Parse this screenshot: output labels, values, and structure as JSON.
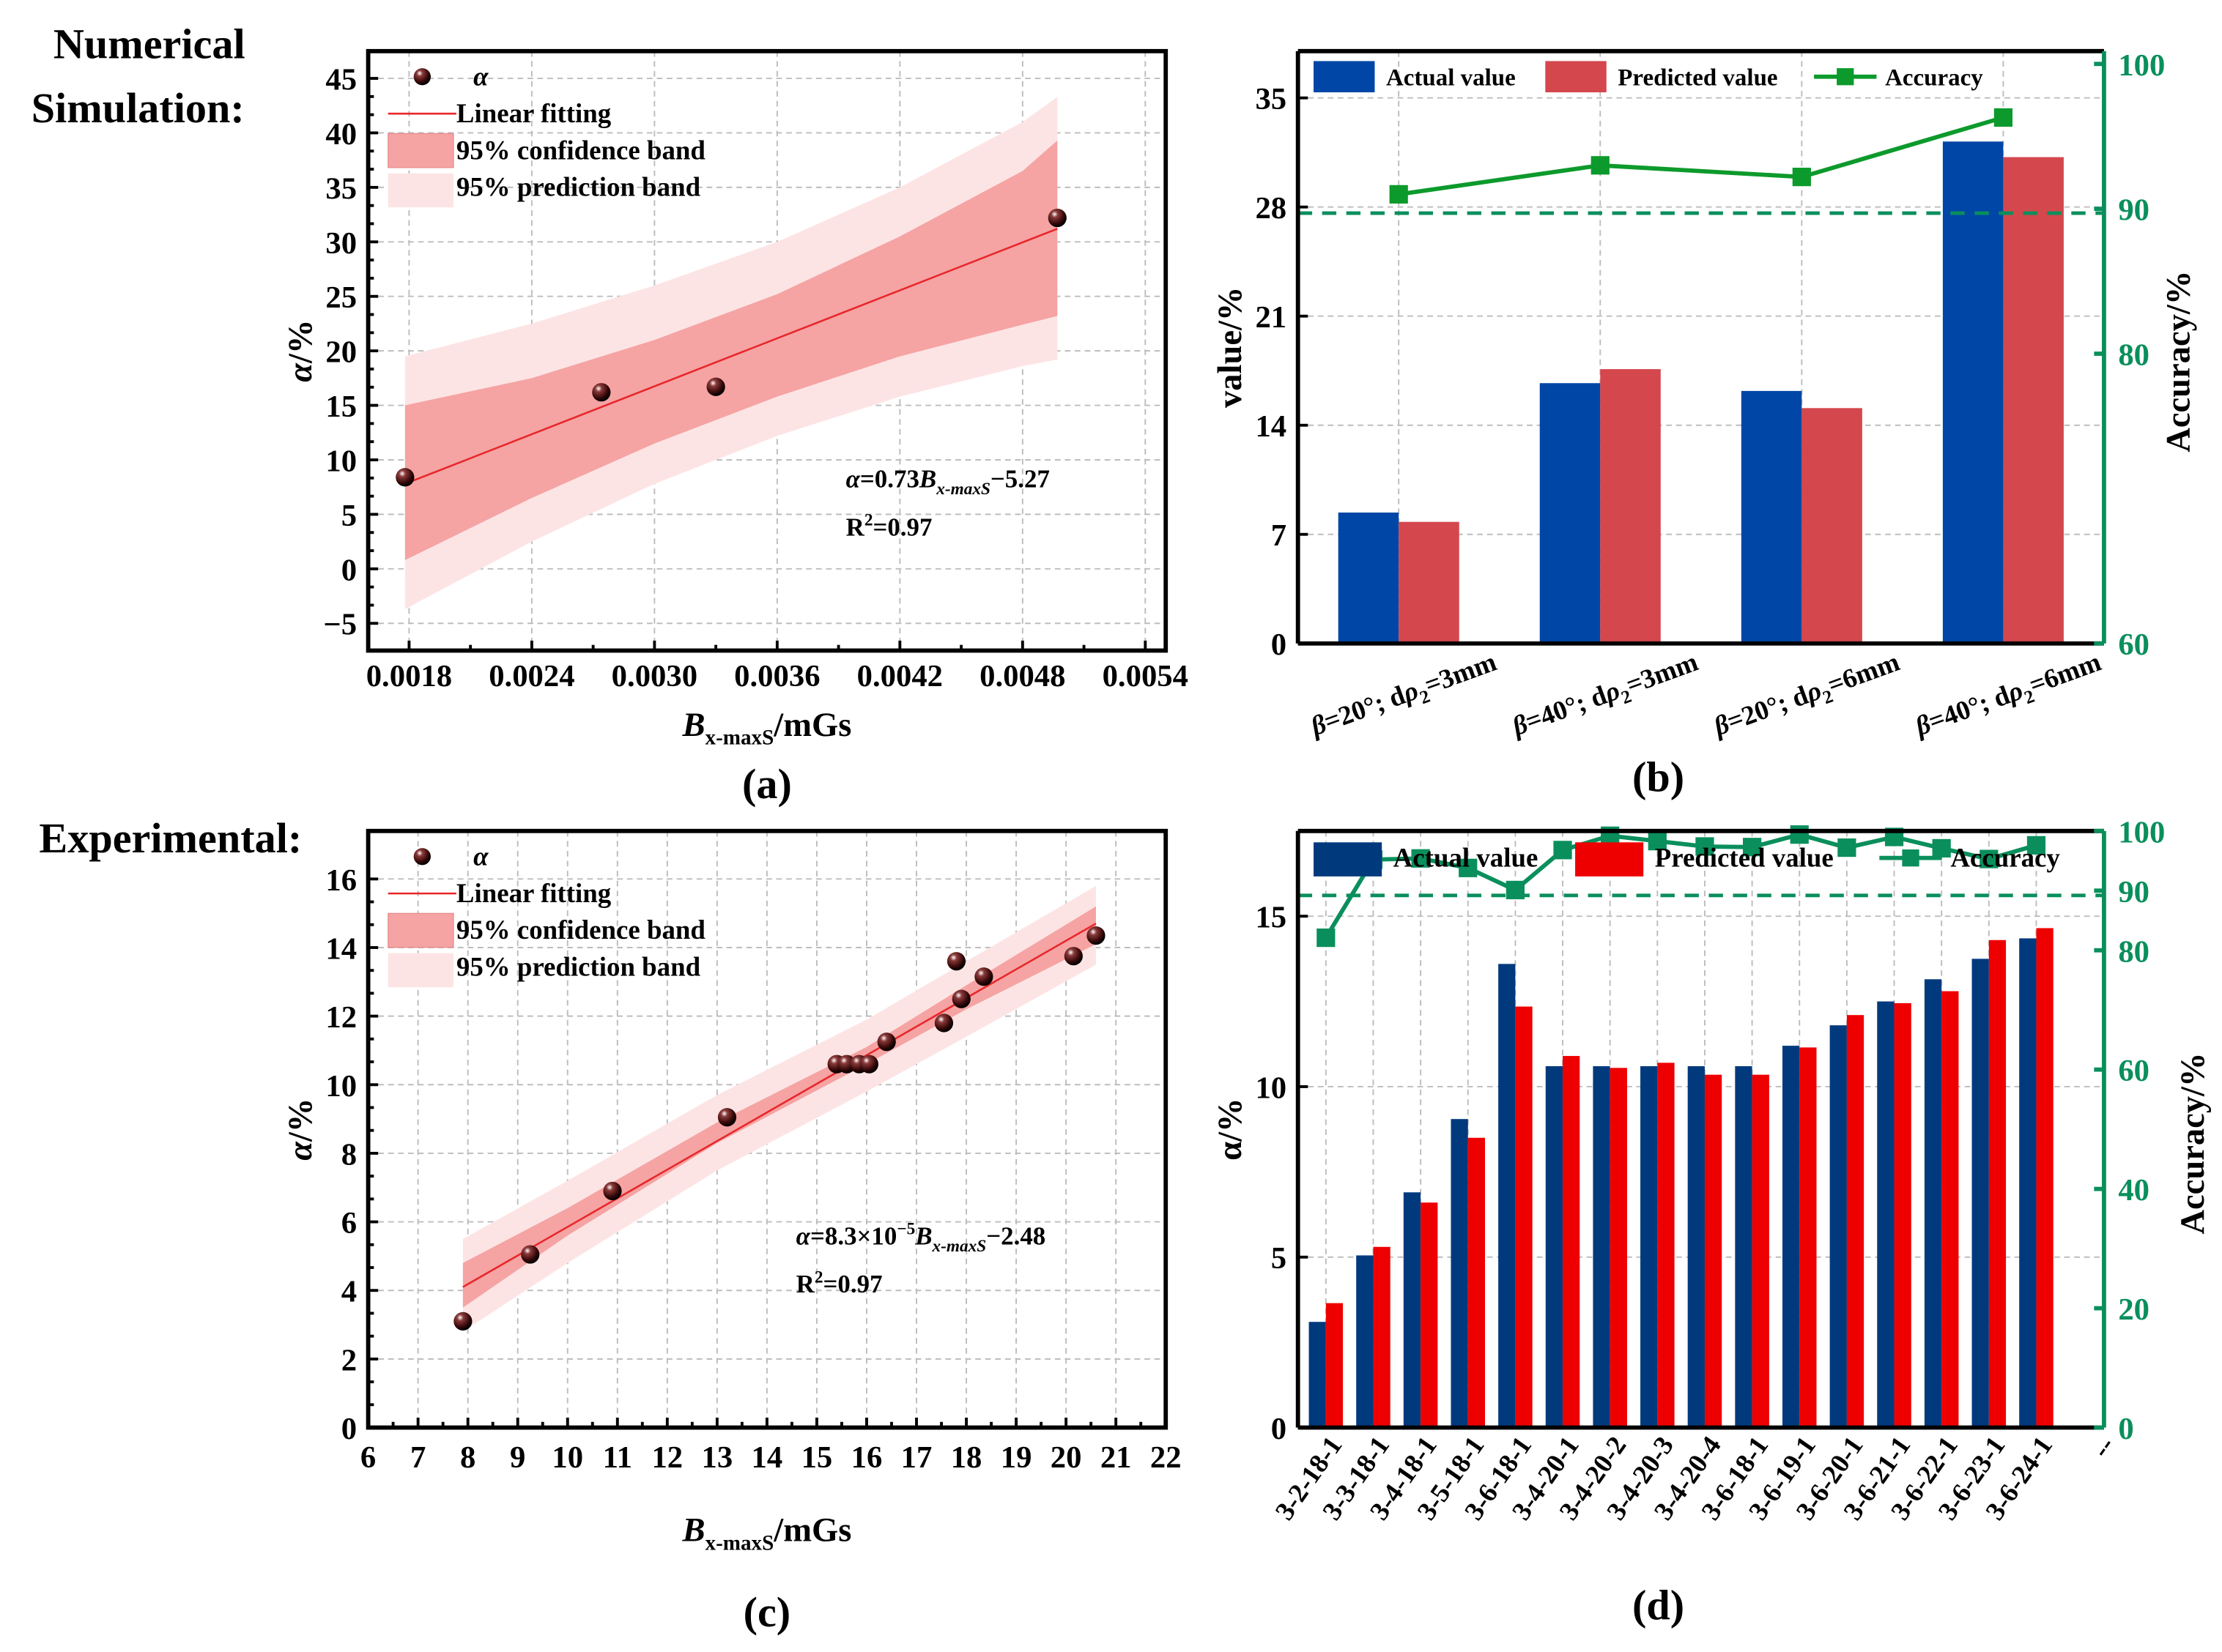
{
  "section_titles": {
    "numerical_line1": "Numerical",
    "numerical_line2": "Simulation:",
    "experimental": "Experimental:"
  },
  "colors": {
    "fit_line": "#e8262a",
    "confidence_band": "#f5a3a3",
    "prediction_band": "#fde4e4",
    "b_actual": "#0046a6",
    "b_predicted": "#d4474d",
    "b_accuracy": "#0d9a2c",
    "d_actual": "#003a7d",
    "d_predicted": "#ee0000",
    "d_accuracy": "#0a8f5c",
    "threshold": "#0a8f5c"
  },
  "chart_data": [
    {
      "id": "a",
      "type": "scatter",
      "panel_label": "(a)",
      "title": "",
      "xlabel_main": "B",
      "xlabel_sub": "x-maxS",
      "xlabel_unit": "/mGs",
      "ylabel": "α/%",
      "xlim": [
        0.0016,
        0.0055
      ],
      "ylim": [
        -7.5,
        47.5
      ],
      "xticks": [
        "0.0018",
        "0.0024",
        "0.0030",
        "0.0036",
        "0.0042",
        "0.0048",
        "0.0054"
      ],
      "xtick_values": [
        0.0018,
        0.0024,
        0.003,
        0.0036,
        0.0042,
        0.0048,
        0.0054
      ],
      "yticks": [
        "−5",
        "0",
        "5",
        "10",
        "15",
        "20",
        "25",
        "30",
        "35",
        "40",
        "45"
      ],
      "ytick_values": [
        -5,
        0,
        5,
        10,
        15,
        20,
        25,
        30,
        35,
        40,
        45
      ],
      "grid": true,
      "legend_placement": "top-left",
      "legend": [
        "α",
        "Linear fitting",
        "95% confidence band",
        "95% prediction band"
      ],
      "points": [
        {
          "x": 0.00178,
          "y": 8.4
        },
        {
          "x": 0.00274,
          "y": 16.2
        },
        {
          "x": 0.0033,
          "y": 16.7
        },
        {
          "x": 0.00497,
          "y": 32.2
        }
      ],
      "fit": {
        "x": [
          0.00178,
          0.00497
        ],
        "y": [
          7.8,
          31.2
        ]
      },
      "confidence_band": {
        "x": [
          0.00178,
          0.0024,
          0.003,
          0.0036,
          0.0042,
          0.0048,
          0.00497
        ],
        "lower": [
          0.8,
          6.5,
          11.5,
          15.8,
          19.5,
          22.4,
          23.2
        ],
        "upper": [
          15.0,
          17.5,
          21.0,
          25.2,
          30.5,
          36.5,
          39.3
        ]
      },
      "prediction_band": {
        "x": [
          0.00178,
          0.0024,
          0.003,
          0.0036,
          0.0042,
          0.0048,
          0.00497
        ],
        "lower": [
          -3.7,
          2.5,
          7.8,
          12.2,
          15.8,
          18.6,
          19.2
        ],
        "upper": [
          19.5,
          22.5,
          26.0,
          30.0,
          35.0,
          41.0,
          43.3
        ]
      },
      "equation": {
        "lhs": "α",
        "mid": "=0.73",
        "var": "B",
        "sub": "x-maxS",
        "rhs": "−5.27"
      },
      "r2": {
        "base": "R",
        "sup": "2",
        "rest": "=0.97"
      }
    },
    {
      "id": "b",
      "type": "bar",
      "panel_label": "(b)",
      "title": "",
      "ylabel": "value/%",
      "ylabel_right": "Accuracy/%",
      "categories": [
        "β=20°;  dρ2=3mm",
        "β=40°;  dρ2=3mm",
        "β=20°;  dρ2=6mm",
        "β=40°;  dρ2=6mm"
      ],
      "category_parts": [
        {
          "pre": "β=20°;  dρ",
          "sub": "2",
          "post": "=3mm"
        },
        {
          "pre": "β=40°;  dρ",
          "sub": "2",
          "post": "=3mm"
        },
        {
          "pre": "β=20°;  dρ",
          "sub": "2",
          "post": "=6mm"
        },
        {
          "pre": "β=40°;  dρ",
          "sub": "2",
          "post": "=6mm"
        }
      ],
      "series": [
        {
          "name": "Actual value",
          "values": [
            8.4,
            16.7,
            16.2,
            32.2
          ]
        },
        {
          "name": "Predicted value",
          "values": [
            7.8,
            17.6,
            15.1,
            31.2
          ]
        },
        {
          "name": "Accuracy",
          "axis": "right",
          "values": [
            91.0,
            93.0,
            92.2,
            96.3
          ]
        }
      ],
      "ylim": [
        0,
        38
      ],
      "yticks": [
        "0",
        "7",
        "14",
        "21",
        "28",
        "35"
      ],
      "ytick_values": [
        0,
        7,
        14,
        21,
        28,
        35
      ],
      "ylim_right": [
        60,
        100
      ],
      "yticks_right": [
        "60",
        "80",
        "90",
        "100"
      ],
      "ytick_values_right": [
        60,
        80,
        90,
        100
      ],
      "threshold_right": 89.7,
      "grid": true,
      "legend_placement": "top"
    },
    {
      "id": "c",
      "type": "scatter",
      "panel_label": "(c)",
      "title": "",
      "xlabel_main": "B",
      "xlabel_sub": "x-maxS",
      "xlabel_unit": "/mGs",
      "ylabel": "α/%",
      "xlim": [
        6,
        22
      ],
      "ylim": [
        0,
        17.4
      ],
      "xticks": [
        "6",
        "7",
        "8",
        "9",
        "10",
        "11",
        "12",
        "13",
        "14",
        "15",
        "16",
        "17",
        "18",
        "19",
        "20",
        "21",
        "22"
      ],
      "xtick_values": [
        6,
        7,
        8,
        9,
        10,
        11,
        12,
        13,
        14,
        15,
        16,
        17,
        18,
        19,
        20,
        21,
        22
      ],
      "yticks": [
        "0",
        "2",
        "4",
        "6",
        "8",
        "10",
        "12",
        "14",
        "16"
      ],
      "ytick_values": [
        0,
        2,
        4,
        6,
        8,
        10,
        12,
        14,
        16
      ],
      "grid": true,
      "legend_placement": "top-left",
      "legend": [
        "α",
        "Linear fitting",
        "95% confidence band",
        "95% prediction band"
      ],
      "points": [
        {
          "x": 7.9,
          "y": 3.1
        },
        {
          "x": 9.25,
          "y": 5.05
        },
        {
          "x": 10.9,
          "y": 6.9
        },
        {
          "x": 13.2,
          "y": 9.05
        },
        {
          "x": 15.4,
          "y": 10.6
        },
        {
          "x": 15.6,
          "y": 10.6
        },
        {
          "x": 15.85,
          "y": 10.6
        },
        {
          "x": 16.05,
          "y": 10.6
        },
        {
          "x": 16.4,
          "y": 11.25
        },
        {
          "x": 17.55,
          "y": 11.8
        },
        {
          "x": 17.8,
          "y": 13.6
        },
        {
          "x": 17.9,
          "y": 12.5
        },
        {
          "x": 18.35,
          "y": 13.15
        },
        {
          "x": 20.15,
          "y": 13.75
        },
        {
          "x": 20.6,
          "y": 14.35
        }
      ],
      "fit": {
        "x": [
          7.9,
          20.6
        ],
        "y": [
          4.1,
          14.7
        ]
      },
      "confidence_band": {
        "x": [
          7.9,
          10,
          13,
          16,
          18,
          20.6
        ],
        "lower": [
          3.5,
          5.6,
          8.3,
          10.6,
          12.2,
          14.1
        ],
        "upper": [
          4.8,
          6.4,
          8.9,
          11.1,
          12.9,
          15.2
        ]
      },
      "prediction_band": {
        "x": [
          7.9,
          10,
          13,
          16,
          18,
          20.6
        ],
        "lower": [
          2.8,
          4.8,
          7.5,
          9.8,
          11.4,
          13.5
        ],
        "upper": [
          5.5,
          7.2,
          9.7,
          11.9,
          13.6,
          15.8
        ]
      },
      "equation": {
        "lhs": "α",
        "mid": "=8.3×10",
        "sup": "−5",
        "var": "B",
        "sub": "x-maxS",
        "rhs": "−2.48"
      },
      "r2": {
        "base": "R",
        "sup": "2",
        "rest": "=0.97"
      }
    },
    {
      "id": "d",
      "type": "bar",
      "panel_label": "(d)",
      "title": "",
      "ylabel": "α/%",
      "ylabel_right": "Accuracy/%",
      "categories": [
        "3-2-18-1",
        "3-3-18-1",
        "3-4-18-1",
        "3-5-18-1",
        "3-6-18-1",
        "3-4-20-1",
        "3-4-20-2",
        "3-4-20-3",
        "3-4-20-4",
        "3-6-18-1",
        "3-6-19-1",
        "3-6-20-1",
        "3-6-21-1",
        "3-6-22-1",
        "3-6-23-1",
        "3-6-24-1",
        "--"
      ],
      "series": [
        {
          "name": "Actual value",
          "values": [
            3.1,
            5.05,
            6.9,
            9.05,
            13.6,
            10.6,
            10.6,
            10.6,
            10.6,
            10.6,
            11.2,
            11.8,
            12.5,
            13.15,
            13.75,
            14.35
          ]
        },
        {
          "name": "Predicted value",
          "values": [
            3.65,
            5.3,
            6.6,
            8.5,
            12.35,
            10.9,
            10.55,
            10.7,
            10.35,
            10.35,
            11.15,
            12.1,
            12.45,
            12.8,
            14.3,
            14.65
          ]
        },
        {
          "name": "Accuracy",
          "axis": "right",
          "values": [
            82.1,
            95.2,
            95.4,
            93.8,
            90.1,
            96.8,
            99.2,
            98.3,
            97.4,
            97.3,
            99.4,
            97.2,
            99.0,
            97.1,
            95.3,
            97.6
          ]
        }
      ],
      "ylim": [
        0,
        17.5
      ],
      "yticks": [
        "0",
        "5",
        "10",
        "15"
      ],
      "ytick_values": [
        0,
        5,
        10,
        15
      ],
      "ylim_right": [
        0,
        100
      ],
      "yticks_right": [
        "0",
        "20",
        "40",
        "60",
        "80",
        "90",
        "100"
      ],
      "ytick_values_right": [
        0,
        20,
        40,
        60,
        80,
        90,
        100
      ],
      "threshold_right": 89.2,
      "grid": true,
      "legend_placement": "top"
    }
  ]
}
